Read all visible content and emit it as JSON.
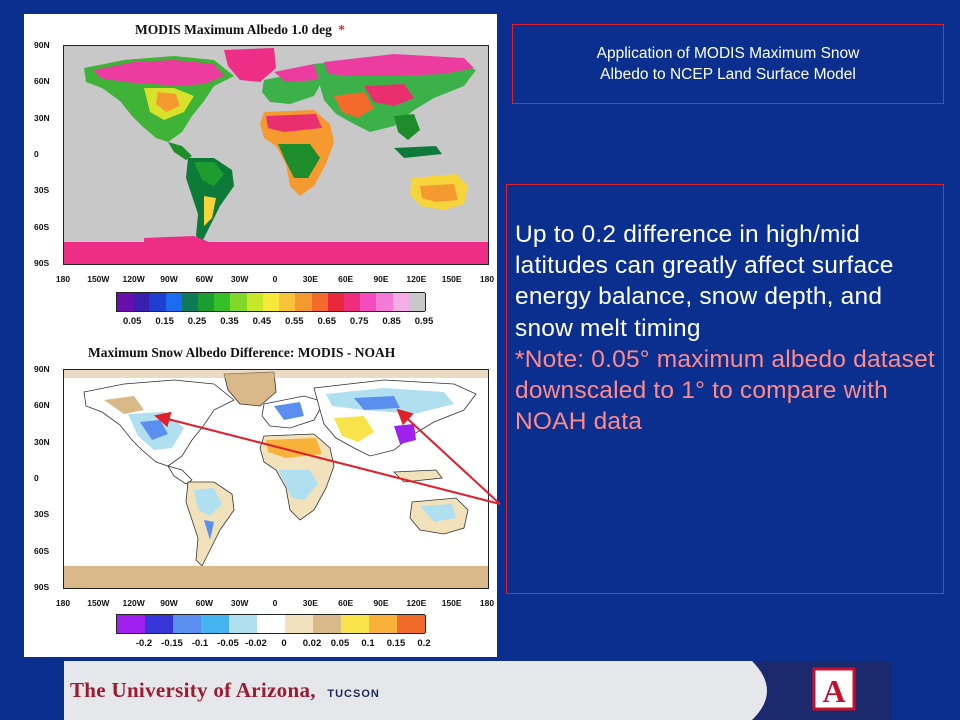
{
  "slide": {
    "title_line1": "Application of MODIS Maximum Snow",
    "title_line2": "Albedo to NCEP Land Surface Model",
    "body_text": "Up to 0.2 difference in high/mid latitudes can greatly affect surface energy balance, snow depth, and snow melt timing",
    "note_text": "*Note: 0.05° maximum albedo dataset downscaled to 1° to compare with NOAH data"
  },
  "map_top": {
    "title": "MODIS Maximum Albedo 1.0 deg",
    "asterisk": "*",
    "lat_labels": [
      "90N",
      "60N",
      "30N",
      "0",
      "30S",
      "60S",
      "90S"
    ],
    "lon_labels": [
      "180",
      "150W",
      "120W",
      "90W",
      "60W",
      "30W",
      "0",
      "30E",
      "60E",
      "90E",
      "120E",
      "150E",
      "180"
    ],
    "colorbar_colors": [
      "#6a0dad",
      "#3a1fb0",
      "#1f3fd0",
      "#1b6cf0",
      "#0f7a5a",
      "#1d9c2f",
      "#36c027",
      "#7fd82a",
      "#c8e62a",
      "#f6e93a",
      "#f8c23a",
      "#f5982e",
      "#f46a2b",
      "#e8283a",
      "#ef2d7f",
      "#f44cbc",
      "#f57ad6",
      "#f3aee6",
      "#c8c8c8"
    ],
    "colorbar_labels": [
      "0.05",
      "0.15",
      "0.25",
      "0.35",
      "0.45",
      "0.55",
      "0.65",
      "0.75",
      "0.85",
      "0.95"
    ]
  },
  "map_bottom": {
    "title": "Maximum Snow Albedo Difference: MODIS - NOAH",
    "lat_labels": [
      "90N",
      "60N",
      "30N",
      "0",
      "30S",
      "60S",
      "90S"
    ],
    "lon_labels": [
      "180",
      "150W",
      "120W",
      "90W",
      "60W",
      "30W",
      "0",
      "30E",
      "60E",
      "90E",
      "120E",
      "150E",
      "180"
    ],
    "colorbar_colors": [
      "#a020f0",
      "#3535d8",
      "#5a8ff0",
      "#46b4f0",
      "#b0e0f0",
      "#ffffff",
      "#f2e2bc",
      "#d9b88a",
      "#f8e44a",
      "#f8b23a",
      "#f06a2a"
    ],
    "colorbar_labels": [
      "-0.2",
      "-0.15",
      "-0.1",
      "-0.05",
      "-0.02",
      "0",
      "0.02",
      "0.05",
      "0.1",
      "0.15",
      "0.2"
    ]
  },
  "footer": {
    "university_the": "The",
    "university_name": "University of Arizona",
    "university_city": "TUCSON",
    "logo_letter": "A"
  }
}
